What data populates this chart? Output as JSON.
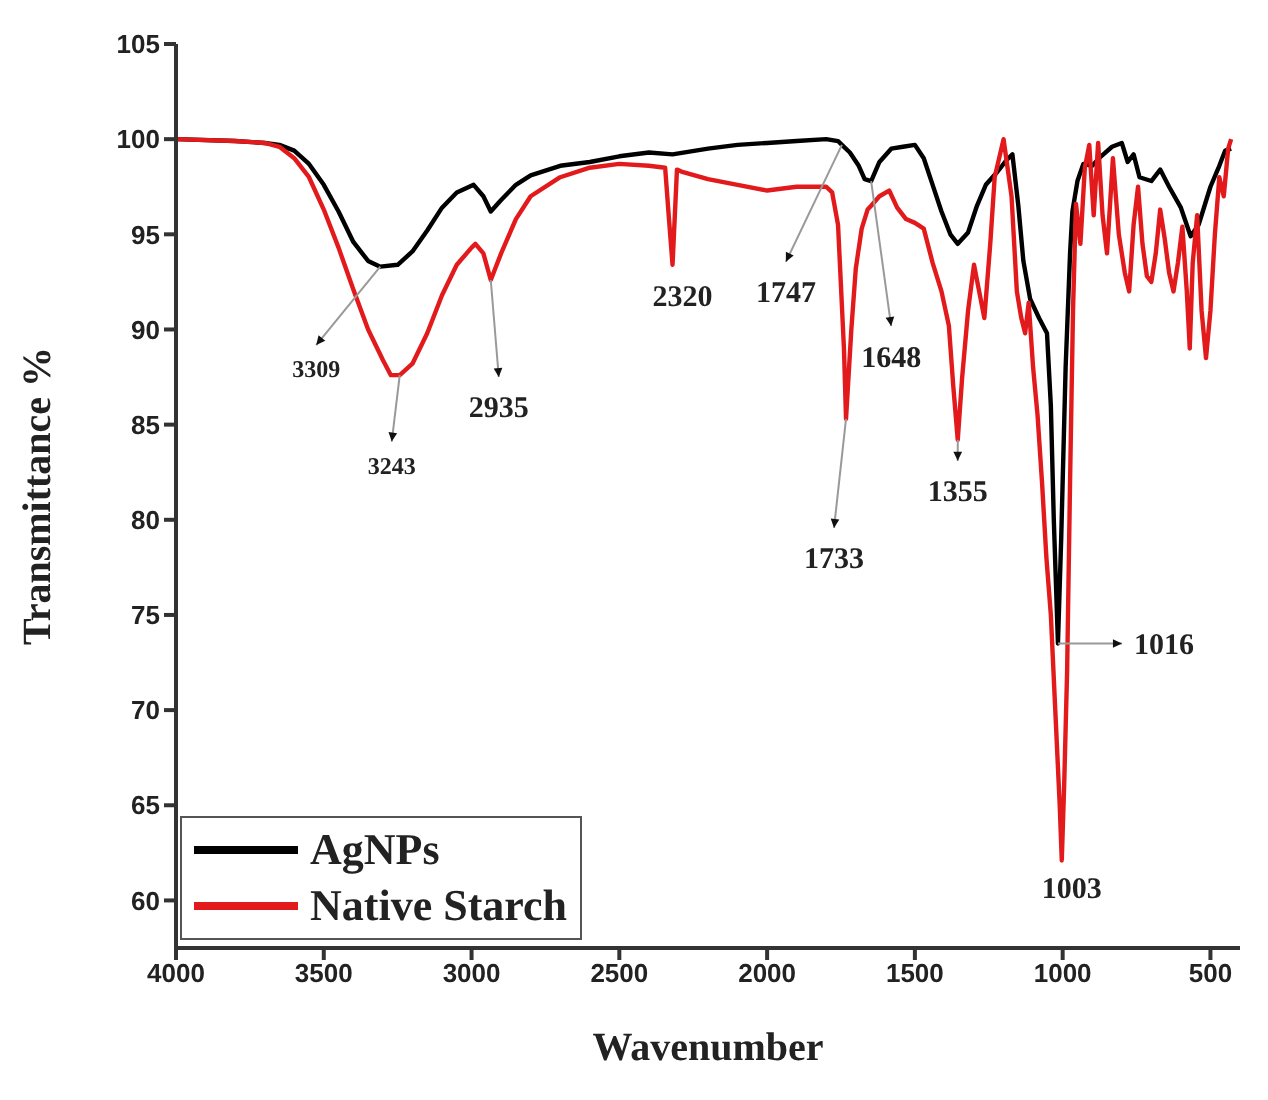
{
  "chart_data": {
    "type": "line",
    "xlabel": "Wavenumber",
    "ylabel": "Transmittance %",
    "xlim": [
      4000,
      400
    ],
    "ylim": [
      57.5,
      105
    ],
    "xticks": [
      4000,
      3500,
      3000,
      2500,
      2000,
      1500,
      1000,
      500
    ],
    "yticks": [
      60,
      65,
      70,
      75,
      80,
      85,
      90,
      95,
      100,
      105
    ],
    "legend": "bottom left",
    "grid": false,
    "marker": "none",
    "line_style": "solid",
    "series": [
      {
        "name": "AgNPs",
        "color": "#000000",
        "x": [
          4000,
          3800,
          3700,
          3650,
          3600,
          3550,
          3500,
          3450,
          3400,
          3350,
          3309,
          3250,
          3200,
          3150,
          3100,
          3050,
          2993,
          2960,
          2935,
          2900,
          2850,
          2800,
          2700,
          2600,
          2500,
          2400,
          2320,
          2200,
          2100,
          2000,
          1900,
          1800,
          1760,
          1747,
          1720,
          1690,
          1670,
          1648,
          1620,
          1580,
          1540,
          1500,
          1470,
          1440,
          1410,
          1380,
          1355,
          1320,
          1290,
          1260,
          1220,
          1190,
          1170,
          1150,
          1133,
          1110,
          1080,
          1053,
          1040,
          1030,
          1016,
          1005,
          990,
          975,
          967,
          950,
          930,
          900,
          870,
          833,
          800,
          780,
          760,
          740,
          700,
          670,
          640,
          600,
          567,
          540,
          520,
          500,
          470,
          450,
          430
        ],
        "values": [
          100,
          99.9,
          99.8,
          99.7,
          99.4,
          98.7,
          97.6,
          96.2,
          94.6,
          93.6,
          93.3,
          93.4,
          94.1,
          95.2,
          96.4,
          97.2,
          97.6,
          97,
          96.2,
          96.8,
          97.6,
          98.1,
          98.6,
          98.8,
          99.1,
          99.3,
          99.2,
          99.5,
          99.7,
          99.8,
          99.9,
          100,
          99.9,
          99.7,
          99.3,
          98.6,
          97.9,
          97.8,
          98.8,
          99.5,
          99.6,
          99.7,
          99,
          97.6,
          96.2,
          95,
          94.5,
          95.1,
          96.5,
          97.6,
          98.3,
          98.9,
          99.2,
          96.5,
          93.6,
          91.6,
          90.6,
          89.8,
          86,
          80,
          73.5,
          79,
          88,
          94,
          96.2,
          97.8,
          98.7,
          98.6,
          99.1,
          99.6,
          99.8,
          98.8,
          99.2,
          98,
          97.8,
          98.4,
          97.5,
          96.4,
          94.9,
          95.5,
          96.5,
          97.5,
          98.6,
          99.4,
          99.5
        ]
      },
      {
        "name": "Native Starch",
        "color": "#e31a1c",
        "x": [
          4000,
          3800,
          3700,
          3650,
          3600,
          3550,
          3500,
          3450,
          3400,
          3350,
          3300,
          3273,
          3243,
          3200,
          3150,
          3100,
          3050,
          3000,
          2987,
          2960,
          2935,
          2900,
          2850,
          2800,
          2700,
          2600,
          2500,
          2400,
          2345,
          2333,
          2320,
          2305,
          2290,
          2200,
          2100,
          2000,
          1900,
          1800,
          1780,
          1760,
          1740,
          1733,
          1715,
          1700,
          1680,
          1660,
          1648,
          1620,
          1587,
          1560,
          1530,
          1500,
          1470,
          1440,
          1410,
          1385,
          1370,
          1355,
          1340,
          1320,
          1300,
          1285,
          1265,
          1245,
          1230,
          1200,
          1173,
          1155,
          1140,
          1127,
          1115,
          1100,
          1085,
          1070,
          1055,
          1040,
          1025,
          1010,
          1003,
          995,
          985,
          975,
          965,
          955,
          940,
          925,
          910,
          895,
          880,
          865,
          850,
          830,
          810,
          790,
          775,
          760,
          745,
          730,
          715,
          700,
          685,
          670,
          655,
          640,
          625,
          610,
          595,
          580,
          570,
          560,
          545,
          530,
          515,
          500,
          485,
          470,
          455,
          440,
          430
        ],
        "values": [
          100,
          99.9,
          99.8,
          99.6,
          99,
          98,
          96.3,
          94.3,
          92.1,
          90,
          88.4,
          87.6,
          87.6,
          88.2,
          89.8,
          91.8,
          93.4,
          94.3,
          94.5,
          94,
          92.6,
          94,
          95.8,
          97,
          98,
          98.5,
          98.7,
          98.6,
          98.5,
          96,
          93.4,
          98.4,
          98.3,
          97.9,
          97.6,
          97.3,
          97.5,
          97.5,
          97.2,
          95.5,
          89,
          85.3,
          90,
          93.2,
          95.3,
          96.3,
          96.5,
          97,
          97.3,
          96.4,
          95.8,
          95.6,
          95.3,
          93.5,
          92,
          90.2,
          87,
          84.2,
          87.5,
          91,
          93.4,
          92.2,
          90.6,
          94.5,
          98,
          100,
          97,
          92,
          90.6,
          89.8,
          91.4,
          88,
          85.5,
          82,
          78,
          75,
          70,
          65,
          62.1,
          66,
          72,
          82,
          91,
          96.6,
          94.5,
          98.5,
          99.7,
          96,
          99.8,
          96,
          94,
          99,
          95,
          93,
          92,
          95.5,
          97.5,
          94.5,
          92.8,
          92.5,
          94,
          96.3,
          94.8,
          93,
          92,
          93.5,
          95.4,
          92,
          89,
          93.5,
          96,
          91,
          88.5,
          91,
          95,
          98,
          97,
          99.5,
          100
        ]
      }
    ],
    "annotations": [
      {
        "text": "3309",
        "x": 3309,
        "y": 93.3
      },
      {
        "text": "3243",
        "x": 3243,
        "y": 87.6
      },
      {
        "text": "2935",
        "x": 2935,
        "y": 92.6
      },
      {
        "text": "2320",
        "x": 2320,
        "y": 93.4
      },
      {
        "text": "1747",
        "x": 1747,
        "y": 99.7
      },
      {
        "text": "1648",
        "x": 1648,
        "y": 97.8
      },
      {
        "text": "1733",
        "x": 1733,
        "y": 85.3
      },
      {
        "text": "1355",
        "x": 1355,
        "y": 84.2
      },
      {
        "text": "1016",
        "x": 1016,
        "y": 73.5
      },
      {
        "text": "1003",
        "x": 1003,
        "y": 62.1
      }
    ]
  }
}
